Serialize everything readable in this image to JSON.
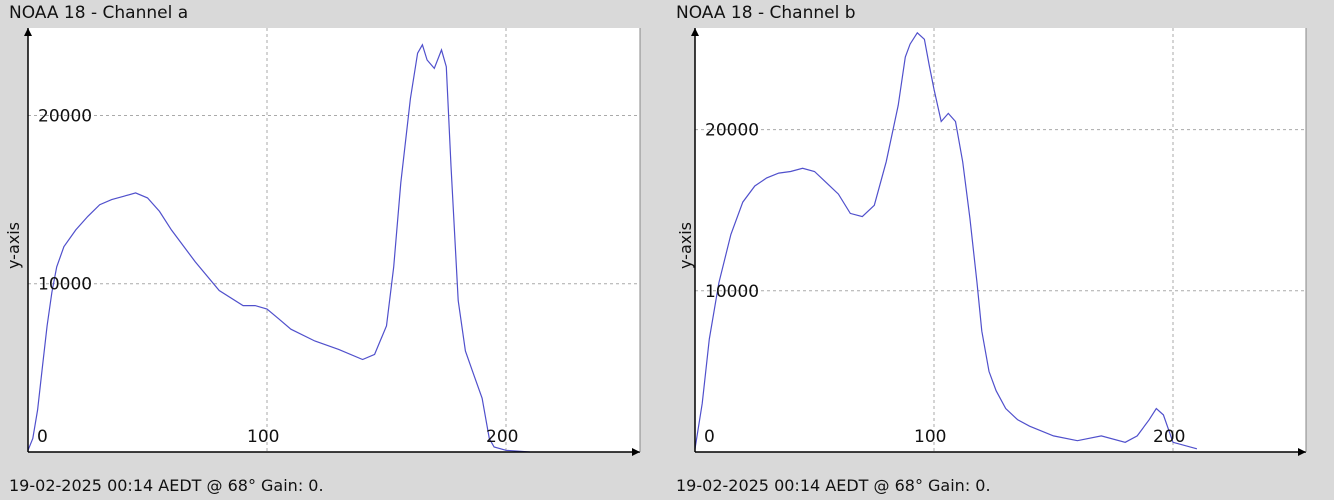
{
  "colors": {
    "background": "#d9d9d9",
    "plot_background": "#ffffff",
    "line": "#5050cc",
    "grid": "#aaaaaa",
    "axis": "#000000"
  },
  "panels": [
    {
      "title": "NOAA 18 - Channel a",
      "footer": "19-02-2025 00:14 AEDT @ 68° Gain: 0.",
      "ylabel": "y-axis",
      "x_ticks": [
        "0",
        "100",
        "200"
      ],
      "y_ticks": [
        "10000",
        "20000"
      ]
    },
    {
      "title": "NOAA 18 - Channel b",
      "footer": "19-02-2025 00:14 AEDT @ 68° Gain: 0.",
      "ylabel": "y-axis",
      "x_ticks": [
        "0",
        "100",
        "200"
      ],
      "y_ticks": [
        "10000",
        "20000"
      ]
    }
  ],
  "chart_data": [
    {
      "type": "line",
      "title": "NOAA 18 - Channel a",
      "xlabel": "",
      "ylabel": "y-axis",
      "xlim": [
        0,
        253
      ],
      "ylim": [
        0,
        25200
      ],
      "xticks": [
        0,
        100,
        200
      ],
      "yticks": [
        10000,
        20000
      ],
      "grid": true,
      "series": [
        {
          "x": [
            0,
            2,
            4,
            6,
            8,
            10,
            12,
            15,
            20,
            25,
            30,
            35,
            40,
            45,
            50,
            55,
            60,
            70,
            80,
            90,
            95,
            100,
            105,
            110,
            120,
            130,
            140,
            145,
            150,
            153,
            156,
            160,
            163,
            165,
            167,
            170,
            173,
            175,
            177,
            180,
            183,
            186,
            190,
            193,
            195,
            200,
            210
          ],
          "y": [
            100,
            800,
            2500,
            5000,
            7500,
            9500,
            11000,
            12200,
            13200,
            14000,
            14700,
            15000,
            15200,
            15400,
            15100,
            14300,
            13200,
            11300,
            9600,
            8700,
            8700,
            8500,
            7900,
            7300,
            6600,
            6100,
            5500,
            5800,
            7500,
            11000,
            16000,
            21000,
            23700,
            24200,
            23300,
            22800,
            23900,
            22900,
            17000,
            9000,
            6000,
            4800,
            3200,
            800,
            300,
            100,
            0
          ]
        }
      ]
    },
    {
      "type": "line",
      "title": "NOAA 18 - Channel b",
      "xlabel": "",
      "ylabel": "y-axis",
      "xlim": [
        0,
        253
      ],
      "ylim": [
        0,
        26300
      ],
      "xticks": [
        0,
        100,
        200
      ],
      "yticks": [
        10000,
        20000
      ],
      "grid": true,
      "series": [
        {
          "x": [
            0,
            3,
            6,
            10,
            15,
            20,
            25,
            30,
            35,
            40,
            45,
            50,
            55,
            60,
            65,
            70,
            75,
            80,
            85,
            88,
            90,
            93,
            96,
            98,
            100,
            103,
            106,
            109,
            112,
            115,
            118,
            120,
            123,
            126,
            130,
            135,
            140,
            150,
            160,
            170,
            180,
            185,
            190,
            193,
            196,
            200,
            210
          ],
          "y": [
            200,
            3000,
            7000,
            10500,
            13500,
            15500,
            16500,
            17000,
            17300,
            17400,
            17600,
            17400,
            16700,
            16000,
            14800,
            14600,
            15300,
            18000,
            21500,
            24500,
            25300,
            26000,
            25600,
            24000,
            22500,
            20500,
            21000,
            20500,
            18000,
            14500,
            10500,
            7500,
            5000,
            3800,
            2700,
            2000,
            1600,
            1000,
            700,
            1000,
            600,
            1000,
            2000,
            2700,
            2300,
            600,
            200
          ]
        }
      ]
    }
  ]
}
